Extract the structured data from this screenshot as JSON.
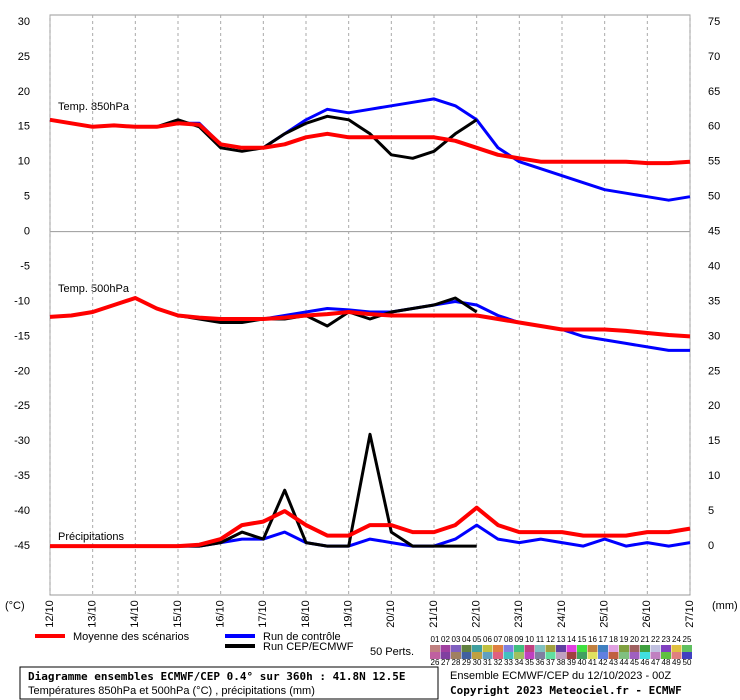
{
  "chart_data": {
    "type": "line",
    "categories": [
      "12/10",
      null,
      "13/10",
      null,
      "14/10",
      null,
      "15/10",
      null,
      "16/10",
      null,
      "17/10",
      null,
      "18/10",
      null,
      "19/10",
      null,
      "20/10",
      null,
      "21/10",
      null,
      "22/10",
      null,
      "23/10",
      null,
      "24/10",
      null,
      "25/10",
      null,
      "26/10",
      null,
      "27/10"
    ],
    "ylim": [
      -52,
      31
    ],
    "yticks": [
      30,
      25,
      20,
      15,
      10,
      5,
      0,
      -5,
      -10,
      -15,
      -20,
      -25,
      -30,
      -35,
      -40,
      -45
    ],
    "y2lim": [
      -7,
      76
    ],
    "y2ticks": [
      75,
      70,
      65,
      60,
      55,
      50,
      45,
      40,
      35,
      30,
      25,
      20,
      15,
      10,
      5,
      0
    ],
    "ylabel": "(°C)",
    "y2label": "(mm)",
    "grid": true,
    "panel_labels": {
      "t850": "Temp. 850hPa",
      "t500": "Temp. 500hPa",
      "precip": "Précipitations"
    },
    "series": [
      {
        "name": "Moyenne des scénarios",
        "color": "#ff0000",
        "t850": [
          16,
          15.5,
          15,
          15.2,
          15,
          15,
          15.5,
          15.3,
          12.5,
          12,
          12,
          12.5,
          13.5,
          14,
          13.5,
          13.5,
          13.5,
          13.5,
          13.5,
          13,
          12,
          11,
          10.5,
          10,
          10,
          10,
          10,
          10,
          9.8,
          9.8,
          10
        ],
        "t500": [
          -12.2,
          -12,
          -11.5,
          -10.5,
          -9.5,
          -11,
          -12,
          -12.3,
          -12.5,
          -12.5,
          -12.5,
          -12.3,
          -12,
          -11.8,
          -11.5,
          -11.8,
          -12,
          -12,
          -12,
          -12,
          -12,
          -12.5,
          -13,
          -13.5,
          -14,
          -14,
          -14,
          -14.2,
          -14.5,
          -14.8,
          -15
        ],
        "precip": [
          0,
          0,
          0,
          0,
          0,
          0,
          0,
          0.2,
          1,
          3,
          3.5,
          5,
          3,
          1.5,
          1.5,
          3,
          3,
          2,
          2,
          3,
          5.5,
          3,
          2,
          2,
          2,
          1.5,
          1.5,
          1.5,
          2,
          2,
          2.5
        ]
      },
      {
        "name": "Run de contrôle",
        "color": "#0000ff",
        "t850": [
          16,
          15.5,
          15,
          15.2,
          15,
          15,
          15.5,
          15.5,
          12.5,
          12,
          12,
          14,
          16,
          17.5,
          17,
          17.5,
          18,
          18.5,
          19,
          18,
          16,
          12,
          10,
          9,
          8,
          7,
          6,
          5.5,
          5,
          4.5,
          5
        ],
        "t500": [
          -12.2,
          -12,
          -11.5,
          -10.5,
          -9.5,
          -11,
          -12,
          -12.3,
          -12.5,
          -12.5,
          -12.5,
          -12,
          -11.5,
          -11,
          -11.2,
          -11.5,
          -11.5,
          -11,
          -10.5,
          -10,
          -10.5,
          -12,
          -13,
          -13.5,
          -14,
          -15,
          -15.5,
          -16,
          -16.5,
          -17,
          -17
        ],
        "precip": [
          0,
          0,
          0,
          0,
          0,
          0,
          0,
          0,
          0.5,
          1,
          1,
          2,
          0.5,
          0,
          0,
          1,
          0.5,
          0,
          0,
          1,
          3,
          1,
          0.5,
          1,
          0.5,
          0,
          1,
          0,
          0.5,
          0,
          0.5
        ]
      },
      {
        "name": "Run CEP/ECMWF",
        "color": "#000000",
        "t850": [
          16,
          15.5,
          15,
          15.2,
          15,
          15,
          16,
          15,
          12,
          11.5,
          12,
          14,
          15.5,
          16.5,
          16,
          14,
          11,
          10.5,
          11.5,
          14,
          16,
          null,
          null,
          null,
          null,
          null,
          null,
          null,
          null,
          null,
          null
        ],
        "t500": [
          -12.2,
          -12,
          -11.5,
          -10.5,
          -9.5,
          -11,
          -12,
          -12.5,
          -13,
          -13,
          -12.5,
          -12.5,
          -12,
          -13.5,
          -11.5,
          -12.5,
          -11.5,
          -11,
          -10.5,
          -9.5,
          -11.5,
          null,
          null,
          null,
          null,
          null,
          null,
          null,
          null,
          null,
          null
        ],
        "precip": [
          0,
          0,
          0,
          0,
          0,
          0,
          0,
          0,
          0.5,
          2,
          1,
          8,
          0.5,
          0,
          0,
          16,
          2,
          0,
          0,
          0,
          0,
          null,
          null,
          null,
          null,
          null,
          null,
          null,
          null,
          null,
          null
        ]
      }
    ],
    "members": {
      "label": "50 Perts.",
      "ids": [
        "01",
        "02",
        "03",
        "04",
        "05",
        "06",
        "07",
        "08",
        "09",
        "10",
        "11",
        "12",
        "13",
        "14",
        "15",
        "16",
        "17",
        "18",
        "19",
        "20",
        "21",
        "22",
        "23",
        "24",
        "25",
        "26",
        "27",
        "28",
        "29",
        "30",
        "31",
        "32",
        "33",
        "34",
        "35",
        "36",
        "37",
        "38",
        "39",
        "40",
        "41",
        "42",
        "43",
        "44",
        "45",
        "46",
        "47",
        "48",
        "49",
        "50"
      ],
      "colors": [
        "#c08080",
        "#a040a0",
        "#8060c0",
        "#608040",
        "#40a0a0",
        "#c0c040",
        "#e08040",
        "#8080e0",
        "#40c080",
        "#c04080",
        "#80c0c0",
        "#a0a040",
        "#6040a0",
        "#e040e0",
        "#40e040",
        "#c08040",
        "#4080c0",
        "#e0a0e0",
        "#80a040",
        "#a06060",
        "#40a040",
        "#c0c0e0",
        "#8040c0",
        "#e0c040",
        "#60c060",
        "#c060a0",
        "#8040a0",
        "#a08060",
        "#4060a0",
        "#c0a040",
        "#60a0c0",
        "#e06080",
        "#40c0c0",
        "#a0c060",
        "#c040c0",
        "#8080a0",
        "#60e0a0",
        "#c0a0c0",
        "#a04040",
        "#40a060",
        "#e0e060",
        "#6080e0",
        "#c06040",
        "#80c080",
        "#a060c0",
        "#40e0e0",
        "#c080c0",
        "#60c040",
        "#e08080",
        "#4040c0"
      ]
    },
    "footer": {
      "title": "Diagramme ensembles ECMWF/CEP 0.4° sur 360h : 41.8N 12.5E",
      "subtitle": "Températures 850hPa et 500hPa (°C) , précipitations (mm)",
      "run": "Ensemble ECMWF/CEP du 12/10/2023 - 00Z",
      "copyright": "Copyright 2023 Meteociel.fr - ECMWF"
    }
  }
}
